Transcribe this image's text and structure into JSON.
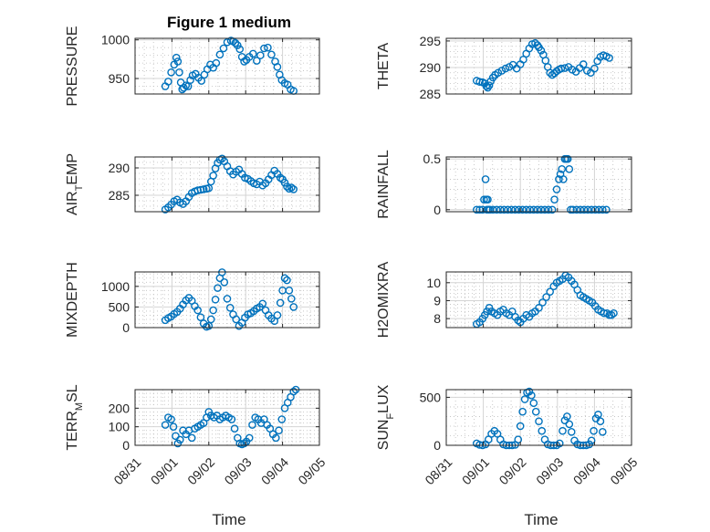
{
  "figure": {
    "title": "Figure 1 medium",
    "xlabel": "Time",
    "marker_color": "#0072BD"
  },
  "chart_data": [
    {
      "type": "scatter",
      "ylabel": "PRESSURE",
      "xlim": [
        0,
        5
      ],
      "ylim": [
        930,
        1002
      ],
      "yticks": [
        950,
        1000
      ],
      "show_xticklabels": false,
      "grid": true,
      "x": [
        0.82,
        0.9,
        0.98,
        1.06,
        1.12,
        1.16,
        1.2,
        1.24,
        1.28,
        1.32,
        1.38,
        1.44,
        1.5,
        1.56,
        1.64,
        1.72,
        1.8,
        1.88,
        1.96,
        2.04,
        2.12,
        2.2,
        2.3,
        2.4,
        2.5,
        2.6,
        2.66,
        2.72,
        2.78,
        2.84,
        2.9,
        2.96,
        3.02,
        3.1,
        3.2,
        3.3,
        3.4,
        3.5,
        3.6,
        3.7,
        3.8,
        3.86,
        3.92,
        3.98,
        4.06,
        4.14,
        4.22,
        4.3
      ],
      "y": [
        940,
        946,
        958,
        968,
        977,
        972,
        958,
        945,
        936,
        938,
        941,
        940,
        948,
        954,
        956,
        951,
        947,
        955,
        962,
        968,
        964,
        970,
        981,
        989,
        997,
        999,
        998,
        996,
        993,
        988,
        978,
        972,
        974,
        978,
        982,
        973,
        980,
        989,
        990,
        981,
        972,
        965,
        955,
        948,
        944,
        942,
        936,
        934
      ]
    },
    {
      "type": "scatter",
      "ylabel": "THETA",
      "xlim": [
        0,
        5
      ],
      "ylim": [
        285,
        295.5
      ],
      "yticks": [
        285,
        290,
        295
      ],
      "show_xticklabels": false,
      "grid": true,
      "x": [
        0.82,
        0.9,
        0.98,
        1.04,
        1.08,
        1.12,
        1.16,
        1.2,
        1.26,
        1.32,
        1.4,
        1.5,
        1.6,
        1.7,
        1.8,
        1.9,
        2.0,
        2.08,
        2.16,
        2.24,
        2.32,
        2.4,
        2.46,
        2.5,
        2.56,
        2.62,
        2.68,
        2.74,
        2.8,
        2.86,
        2.92,
        2.98,
        3.04,
        3.1,
        3.2,
        3.3,
        3.4,
        3.5,
        3.6,
        3.7,
        3.8,
        3.9,
        4.0,
        4.08,
        4.16,
        4.24,
        4.32,
        4.4
      ],
      "y": [
        287.5,
        287.3,
        287.2,
        287.0,
        286.5,
        286.2,
        286.6,
        287.4,
        288.1,
        288.6,
        289.0,
        289.4,
        289.8,
        290.1,
        290.5,
        289.8,
        290.6,
        291.5,
        292.6,
        293.6,
        294.4,
        294.6,
        294.2,
        293.8,
        293.2,
        292.4,
        291.3,
        290.1,
        289.0,
        288.6,
        288.9,
        289.3,
        289.6,
        289.8,
        289.9,
        290.1,
        289.6,
        289.2,
        289.9,
        290.6,
        289.4,
        289.0,
        289.8,
        291.2,
        292.0,
        292.3,
        292.1,
        291.8
      ]
    },
    {
      "type": "scatter",
      "ylabel": "AIR_TEMP",
      "xlim": [
        0,
        5
      ],
      "ylim": [
        282,
        292
      ],
      "yticks": [
        285,
        290
      ],
      "show_xticklabels": false,
      "grid": true,
      "x": [
        0.82,
        0.9,
        0.98,
        1.06,
        1.14,
        1.22,
        1.3,
        1.38,
        1.46,
        1.54,
        1.62,
        1.7,
        1.78,
        1.86,
        1.94,
        2.0,
        2.06,
        2.12,
        2.18,
        2.24,
        2.3,
        2.36,
        2.42,
        2.5,
        2.58,
        2.66,
        2.74,
        2.82,
        2.9,
        2.98,
        3.06,
        3.14,
        3.22,
        3.3,
        3.38,
        3.46,
        3.54,
        3.62,
        3.7,
        3.78,
        3.86,
        3.94,
        4.0,
        4.06,
        4.12,
        4.18,
        4.24,
        4.3
      ],
      "y": [
        282.4,
        282.8,
        283.3,
        283.9,
        284.2,
        283.7,
        283.4,
        283.9,
        284.7,
        285.4,
        285.7,
        285.9,
        286.0,
        286.1,
        286.2,
        286.3,
        287.5,
        288.6,
        289.9,
        290.9,
        291.5,
        291.7,
        291.2,
        290.3,
        289.4,
        288.8,
        289.3,
        289.7,
        288.9,
        288.2,
        288.0,
        287.6,
        287.2,
        287.0,
        287.5,
        286.8,
        287.2,
        287.9,
        288.7,
        289.5,
        288.9,
        288.2,
        287.9,
        287.3,
        286.6,
        286.2,
        286.4,
        286.1
      ]
    },
    {
      "type": "scatter",
      "ylabel": "RAINFALL",
      "xlim": [
        0,
        5
      ],
      "ylim": [
        -0.02,
        0.52
      ],
      "yticks": [
        0,
        0.5
      ],
      "show_xticklabels": false,
      "grid": true,
      "x": [
        0.82,
        0.9,
        0.98,
        1.02,
        1.06,
        1.08,
        1.1,
        1.12,
        1.14,
        1.18,
        1.26,
        1.36,
        1.46,
        1.56,
        1.66,
        1.76,
        1.86,
        1.96,
        2.06,
        2.16,
        2.26,
        2.36,
        2.46,
        2.56,
        2.66,
        2.76,
        2.86,
        2.92,
        2.98,
        3.04,
        3.08,
        3.12,
        3.16,
        3.2,
        3.24,
        3.28,
        3.32,
        3.36,
        3.42,
        3.52,
        3.62,
        3.72,
        3.82,
        3.92,
        4.02,
        4.12,
        4.22,
        4.32
      ],
      "y": [
        0,
        0,
        0,
        0.1,
        0.3,
        0.1,
        0,
        0.1,
        0,
        0,
        0,
        0,
        0,
        0,
        0,
        0,
        0,
        0,
        0,
        0,
        0,
        0,
        0,
        0,
        0,
        0,
        0,
        0.1,
        0.2,
        0.3,
        0.35,
        0.4,
        0.3,
        0.5,
        0.5,
        0.5,
        0.4,
        0,
        0,
        0,
        0,
        0,
        0,
        0,
        0,
        0,
        0,
        0
      ]
    },
    {
      "type": "scatter",
      "ylabel": "MIXDEPTH",
      "xlim": [
        0,
        5
      ],
      "ylim": [
        0,
        1350
      ],
      "yticks": [
        0,
        500,
        1000
      ],
      "show_xticklabels": false,
      "grid": true,
      "x": [
        0.82,
        0.9,
        0.98,
        1.06,
        1.14,
        1.22,
        1.3,
        1.38,
        1.46,
        1.54,
        1.62,
        1.7,
        1.78,
        1.86,
        1.94,
        2.0,
        2.06,
        2.12,
        2.18,
        2.24,
        2.3,
        2.36,
        2.42,
        2.5,
        2.58,
        2.66,
        2.74,
        2.82,
        2.9,
        2.98,
        3.06,
        3.14,
        3.22,
        3.3,
        3.38,
        3.46,
        3.54,
        3.62,
        3.7,
        3.78,
        3.86,
        3.94,
        4.0,
        4.06,
        4.12,
        4.18,
        4.24,
        4.3
      ],
      "y": [
        180,
        230,
        270,
        330,
        380,
        460,
        560,
        660,
        720,
        650,
        520,
        420,
        250,
        100,
        20,
        40,
        200,
        420,
        680,
        960,
        1200,
        1340,
        1100,
        700,
        480,
        320,
        200,
        40,
        120,
        240,
        320,
        350,
        400,
        460,
        500,
        580,
        420,
        300,
        220,
        160,
        300,
        600,
        900,
        1200,
        1150,
        900,
        700,
        500
      ]
    },
    {
      "type": "scatter",
      "ylabel": "H2OMIXRA",
      "xlim": [
        0,
        5
      ],
      "ylim": [
        7.5,
        10.6
      ],
      "yticks": [
        8,
        9,
        10
      ],
      "show_xticklabels": false,
      "grid": true,
      "x": [
        0.82,
        0.9,
        0.98,
        1.04,
        1.1,
        1.16,
        1.22,
        1.3,
        1.38,
        1.46,
        1.54,
        1.62,
        1.7,
        1.78,
        1.86,
        1.94,
        2.0,
        2.08,
        2.16,
        2.24,
        2.32,
        2.4,
        2.5,
        2.6,
        2.7,
        2.8,
        2.9,
        2.98,
        3.06,
        3.14,
        3.22,
        3.3,
        3.38,
        3.46,
        3.54,
        3.62,
        3.7,
        3.78,
        3.86,
        3.94,
        4.02,
        4.1,
        4.18,
        4.26,
        4.34,
        4.4,
        4.46,
        4.52
      ],
      "y": [
        7.7,
        7.8,
        8.0,
        8.2,
        8.4,
        8.6,
        8.4,
        8.3,
        8.2,
        8.4,
        8.5,
        8.3,
        8.2,
        8.4,
        8.1,
        7.9,
        7.8,
        8.0,
        8.2,
        8.1,
        8.3,
        8.4,
        8.6,
        8.9,
        9.2,
        9.5,
        9.8,
        10.0,
        10.1,
        10.2,
        10.4,
        10.3,
        10.1,
        9.9,
        9.6,
        9.3,
        9.2,
        9.1,
        9.0,
        8.9,
        8.7,
        8.5,
        8.4,
        8.3,
        8.3,
        8.2,
        8.2,
        8.3
      ]
    },
    {
      "type": "scatter",
      "ylabel": "TERR_MSL",
      "xlim": [
        0,
        5
      ],
      "ylim": [
        0,
        300
      ],
      "yticks": [
        0,
        100,
        200
      ],
      "show_xticklabels": true,
      "grid": true,
      "x": [
        0.82,
        0.9,
        0.98,
        1.04,
        1.1,
        1.16,
        1.22,
        1.3,
        1.38,
        1.46,
        1.54,
        1.62,
        1.7,
        1.78,
        1.86,
        1.94,
        2.0,
        2.06,
        2.14,
        2.22,
        2.3,
        2.38,
        2.46,
        2.54,
        2.62,
        2.7,
        2.78,
        2.84,
        2.9,
        2.96,
        3.02,
        3.1,
        3.18,
        3.26,
        3.34,
        3.42,
        3.5,
        3.58,
        3.66,
        3.74,
        3.82,
        3.9,
        3.98,
        4.06,
        4.14,
        4.22,
        4.3,
        4.36
      ],
      "y": [
        110,
        150,
        140,
        100,
        50,
        10,
        30,
        80,
        60,
        80,
        40,
        90,
        100,
        110,
        120,
        150,
        180,
        160,
        150,
        160,
        140,
        150,
        160,
        150,
        140,
        90,
        40,
        10,
        5,
        10,
        20,
        40,
        110,
        150,
        140,
        120,
        140,
        110,
        90,
        60,
        40,
        80,
        140,
        200,
        230,
        260,
        290,
        300
      ]
    },
    {
      "type": "scatter",
      "ylabel": "SUN_FLUX",
      "xlim": [
        0,
        5
      ],
      "ylim": [
        0,
        580
      ],
      "yticks": [
        0,
        500
      ],
      "show_xticklabels": true,
      "grid": true,
      "x": [
        0.82,
        0.9,
        0.98,
        1.06,
        1.14,
        1.22,
        1.3,
        1.38,
        1.46,
        1.54,
        1.62,
        1.7,
        1.78,
        1.86,
        1.94,
        2.0,
        2.06,
        2.12,
        2.18,
        2.24,
        2.3,
        2.36,
        2.42,
        2.5,
        2.58,
        2.66,
        2.74,
        2.82,
        2.9,
        2.98,
        3.06,
        3.14,
        3.2,
        3.26,
        3.32,
        3.38,
        3.46,
        3.54,
        3.62,
        3.7,
        3.78,
        3.86,
        3.92,
        3.98,
        4.04,
        4.1,
        4.16,
        4.22
      ],
      "y": [
        20,
        5,
        0,
        10,
        60,
        120,
        150,
        120,
        60,
        10,
        0,
        0,
        0,
        5,
        60,
        200,
        350,
        480,
        550,
        560,
        520,
        440,
        350,
        250,
        150,
        60,
        10,
        0,
        0,
        0,
        20,
        150,
        260,
        300,
        220,
        140,
        50,
        10,
        0,
        0,
        0,
        10,
        50,
        150,
        280,
        320,
        250,
        140
      ]
    }
  ],
  "x_axis": {
    "tick_labels": [
      "08/31",
      "09/01",
      "09/02",
      "09/03",
      "09/04",
      "09/05"
    ]
  }
}
